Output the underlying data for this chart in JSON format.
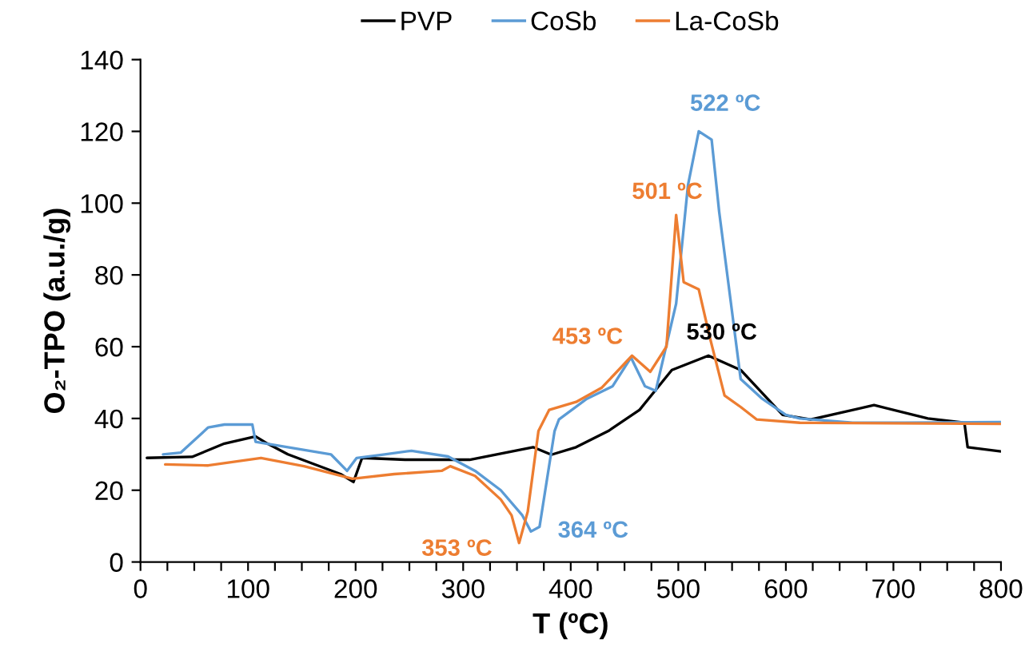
{
  "chart_data": {
    "type": "line",
    "xlabel": "T (ºC)",
    "ylabel": "O₂-TPO (a.u./g)",
    "xlim": [
      0,
      800
    ],
    "ylim": [
      0,
      140
    ],
    "xticks": [
      0,
      {
        "value": 25,
        "label": null
      },
      {
        "value": 50,
        "label": null
      },
      {
        "value": 75,
        "label": null
      },
      100,
      {
        "value": 125,
        "label": null
      },
      {
        "value": 150,
        "label": null
      },
      {
        "value": 175,
        "label": null
      },
      200,
      {
        "value": 225,
        "label": null
      },
      {
        "value": 250,
        "label": null
      },
      {
        "value": 275,
        "label": null
      },
      300,
      {
        "value": 325,
        "label": null
      },
      {
        "value": 350,
        "label": null
      },
      {
        "value": 375,
        "label": null
      },
      400,
      {
        "value": 425,
        "label": null
      },
      {
        "value": 450,
        "label": null
      },
      {
        "value": 475,
        "label": null
      },
      500,
      {
        "value": 525,
        "label": null
      },
      {
        "value": 550,
        "label": null
      },
      {
        "value": 575,
        "label": null
      },
      600,
      {
        "value": 625,
        "label": null
      },
      {
        "value": 650,
        "label": null
      },
      {
        "value": 675,
        "label": null
      },
      700,
      {
        "value": 725,
        "label": null
      },
      {
        "value": 750,
        "label": null
      },
      {
        "value": 775,
        "label": null
      },
      800
    ],
    "yticks": [
      0,
      20,
      40,
      60,
      80,
      100,
      120,
      140
    ],
    "grid": false,
    "legend": "top",
    "marker": "none",
    "line_style": "solid",
    "series": [
      {
        "name": "PVP",
        "color": "#000000",
        "x": [
          6,
          48,
          78,
          107,
          118,
          137,
          186,
          198,
          206,
          246,
          306,
          365,
          382,
          405,
          435,
          464,
          494,
          528,
          558,
          597,
          623,
          682,
          732,
          766,
          769,
          800
        ],
        "values": [
          29,
          29.3,
          33,
          35,
          33,
          30,
          24.5,
          22.3,
          29,
          28.5,
          28.5,
          32,
          29.9,
          32,
          36.5,
          42.4,
          53.5,
          57.5,
          53.5,
          41,
          39.7,
          43.7,
          40,
          38.8,
          32,
          30.8
        ]
      },
      {
        "name": "CoSb",
        "color": "#5b9bd5",
        "x": [
          21,
          37.5,
          63,
          78,
          104,
          107,
          137,
          177,
          192,
          201,
          227,
          252,
          286,
          311,
          335,
          355,
          363,
          371,
          385,
          389,
          415,
          439,
          456,
          469,
          479,
          498,
          509,
          519,
          531,
          538,
          549,
          558,
          578,
          600,
          613,
          662,
          711,
          800
        ],
        "values": [
          30,
          30.5,
          37.5,
          38.3,
          38.3,
          33.5,
          32,
          30,
          25.4,
          29,
          30,
          31,
          29.4,
          25.4,
          20,
          13,
          8.5,
          9.8,
          36.5,
          39.7,
          45.5,
          49,
          57,
          49,
          47.7,
          72,
          105,
          120,
          117.7,
          97.6,
          72,
          51,
          45.5,
          41,
          40,
          38.8,
          38.8,
          39
        ]
      },
      {
        "name": "La-CoSb",
        "color": "#ed7d31",
        "x": [
          23,
          63,
          112,
          152,
          197,
          236,
          280,
          288,
          311,
          335,
          345,
          352,
          360,
          370,
          380,
          405,
          429,
          457,
          474,
          489,
          498,
          505,
          519,
          529,
          543,
          558,
          573,
          613,
          800
        ],
        "values": [
          27.2,
          26.9,
          29,
          26.7,
          23.2,
          24.5,
          25.4,
          26.7,
          24,
          17.4,
          13,
          5.3,
          14,
          36.5,
          42.4,
          44.6,
          48.6,
          57.5,
          53,
          60,
          96.7,
          78,
          76,
          63,
          46.4,
          43.2,
          39.7,
          38.8,
          38.5
        ]
      }
    ],
    "annotations": [
      {
        "text": "522 ºC",
        "x": 519,
        "y": 120
      },
      {
        "text": "501 ºC",
        "x": 498,
        "y": 96.7
      },
      {
        "text": "453 ºC",
        "x": 457,
        "y": 57.5
      },
      {
        "text": "530 ºC",
        "x": 528,
        "y": 57.5
      },
      {
        "text": "353 ºC",
        "x": 352,
        "y": 5.3
      },
      {
        "text": "364 ºC",
        "x": 363,
        "y": 8.5
      }
    ]
  }
}
